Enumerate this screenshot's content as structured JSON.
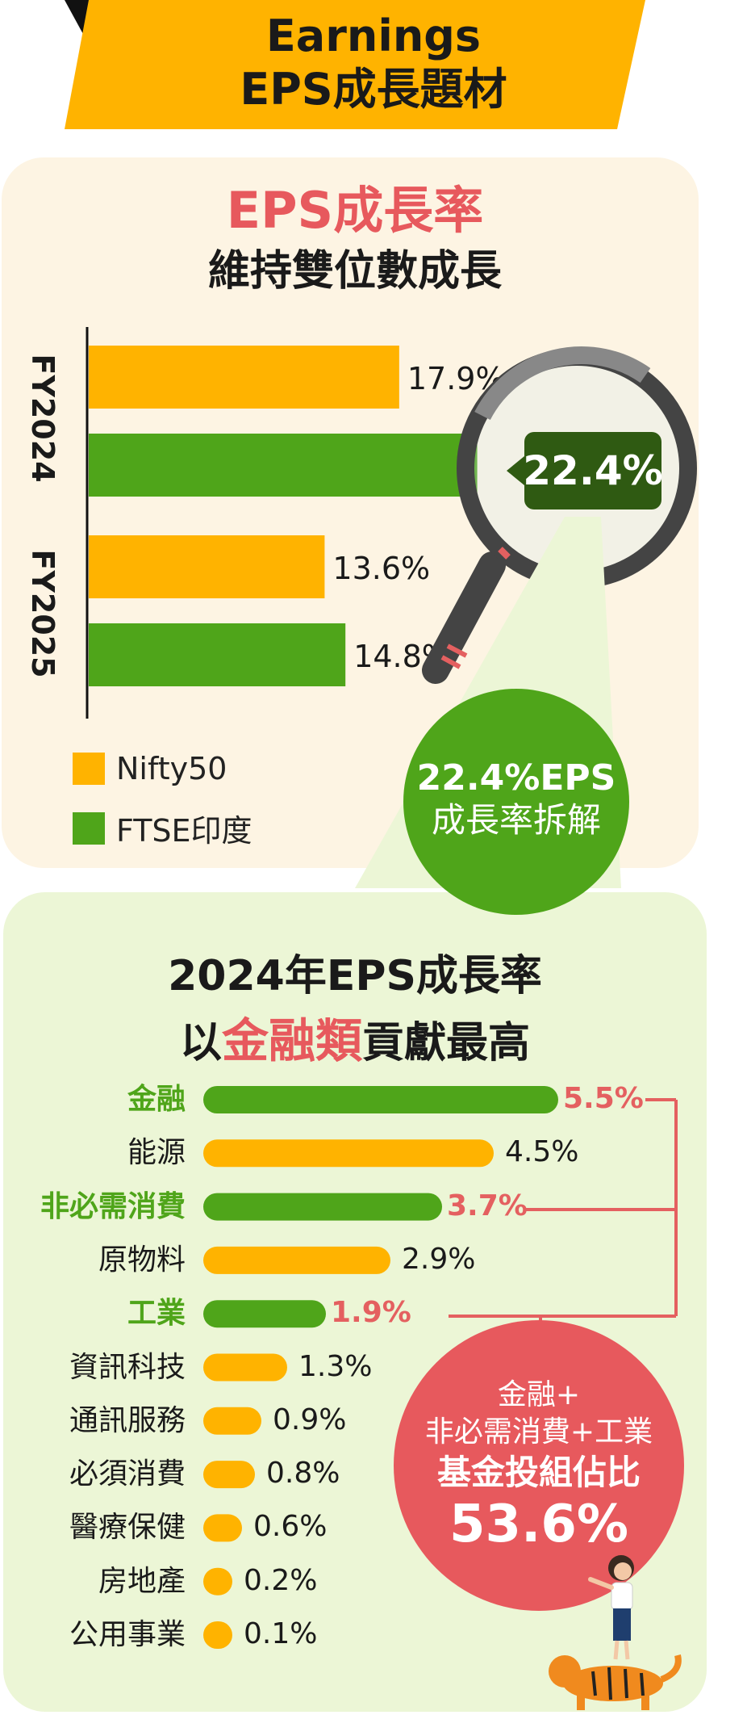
{
  "banner": {
    "line1": "Earnings",
    "line2": "EPS成長題材"
  },
  "section1": {
    "title_red": "EPS成長率",
    "title_dark": "維持雙位數成長"
  },
  "colors": {
    "nifty": "#ffb300",
    "ftse": "#4fa51a",
    "accent_red": "#e7595d",
    "dark_green": "#2f5a12"
  },
  "chart_data": [
    {
      "type": "bar",
      "orientation": "horizontal",
      "title": "EPS成長率 維持雙位數成長",
      "categories": [
        "FY2024",
        "FY2025"
      ],
      "series": [
        {
          "name": "Nifty50",
          "values": [
            17.9,
            13.6
          ],
          "labels": [
            "17.9%",
            "13.6%"
          ]
        },
        {
          "name": "FTSE印度",
          "values": [
            22.4,
            14.8
          ],
          "labels": [
            "22.4%",
            "14.8%"
          ]
        }
      ],
      "xlim": [
        0,
        30
      ],
      "unit": "%",
      "legend": [
        "Nifty50",
        "FTSE印度"
      ]
    },
    {
      "type": "bar",
      "orientation": "horizontal",
      "title": "2024年EPS成長率 以金融類貢獻最高",
      "categories": [
        "金融",
        "能源",
        "非必需消費",
        "原物料",
        "工業",
        "資訊科技",
        "通訊服務",
        "必須消費",
        "醫療保健",
        "房地產",
        "公用事業"
      ],
      "values": [
        5.5,
        4.5,
        3.7,
        2.9,
        1.9,
        1.3,
        0.9,
        0.8,
        0.6,
        0.2,
        0.1
      ],
      "labels": [
        "5.5%",
        "4.5%",
        "3.7%",
        "2.9%",
        "1.9%",
        "1.3%",
        "0.9%",
        "0.8%",
        "0.6%",
        "0.2%",
        "0.1%"
      ],
      "highlighted": [
        "金融",
        "非必需消費",
        "工業"
      ],
      "xlim": [
        0,
        5.5
      ],
      "unit": "%"
    }
  ],
  "magnifier_label": "22.4%",
  "bubble_green": {
    "line1": "22.4%EPS",
    "line2": "成長率拆解"
  },
  "section2": {
    "title_line1": "2024年EPS成長率",
    "title_pre": "以",
    "title_hl": "金融類",
    "title_post": "貢獻最高"
  },
  "bubble_red": {
    "line1": "金融+",
    "line2": "非必需消費+工業",
    "line3": "基金投組佔比",
    "line4": "53.6%"
  }
}
